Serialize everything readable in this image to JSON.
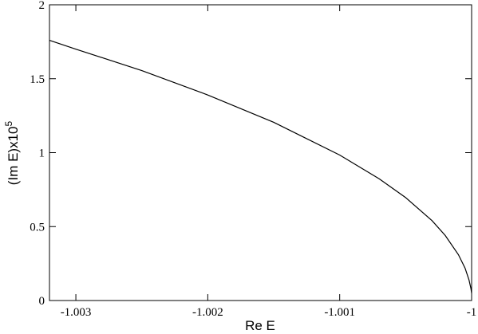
{
  "chart_data": {
    "type": "line",
    "xlabel": "Re E",
    "ylabel": "(Im E)x10",
    "ylabel_exponent": "5",
    "x": [
      -1.0032,
      -1.003,
      -1.0025,
      -1.002,
      -1.0015,
      -1.001,
      -1.0007,
      -1.0005,
      -1.0003,
      -1.0002,
      -1.0001,
      -1.00005,
      -1.00002,
      -1.000005,
      -1
    ],
    "series": [
      {
        "color": "#000000",
        "values": [
          1.76,
          1.7,
          1.555,
          1.39,
          1.205,
          0.984,
          0.823,
          0.696,
          0.54,
          0.44,
          0.31,
          0.22,
          0.14,
          0.08,
          0.05
        ]
      }
    ],
    "xlim": [
      -1.0032,
      -1
    ],
    "ylim": [
      0,
      2
    ],
    "xticks": [
      -1.003,
      -1.002,
      -1.001,
      -1
    ],
    "yticks": [
      0,
      0.5,
      1,
      1.5,
      2
    ]
  }
}
